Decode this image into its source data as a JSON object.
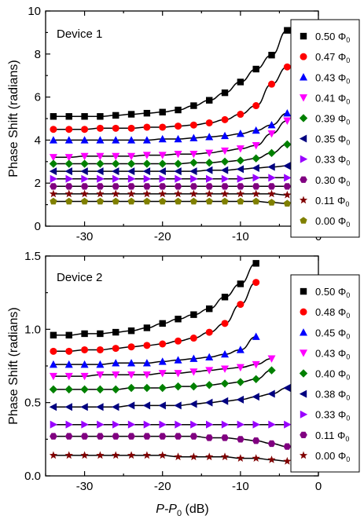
{
  "figure": {
    "shared_xlabel": "P-P0 (dB)"
  },
  "chart_data": [
    {
      "type": "scatter",
      "title": "Device 1",
      "ylabel": "Phase Shift (radians)",
      "xlabel": "P-P0 (dB)",
      "xlim": [
        -35,
        0
      ],
      "ylim": [
        0,
        10
      ],
      "xticks": [
        -30,
        -20,
        -10,
        0
      ],
      "yticks": [
        0,
        2,
        4,
        6,
        8,
        10
      ],
      "legend_position": "right",
      "grid": false,
      "x": [
        -34,
        -32,
        -30,
        -28,
        -26,
        -24,
        -22,
        -20,
        -18,
        -16,
        -14,
        -12,
        -10,
        -8,
        -6,
        -4
      ],
      "series": [
        {
          "name": "0.50 Φ0",
          "marker": "square",
          "color": "#000000",
          "values": [
            5.1,
            5.1,
            5.1,
            5.1,
            5.15,
            5.2,
            5.25,
            5.3,
            5.4,
            5.6,
            5.85,
            6.2,
            6.7,
            7.3,
            7.95,
            9.1
          ]
        },
        {
          "name": "0.47 Φ0",
          "marker": "circle",
          "color": "#ff0000",
          "values": [
            4.5,
            4.5,
            4.5,
            4.55,
            4.55,
            4.55,
            4.6,
            4.6,
            4.65,
            4.7,
            4.8,
            4.95,
            5.2,
            5.6,
            6.6,
            7.4
          ]
        },
        {
          "name": "0.43 Φ0",
          "marker": "triangle-up",
          "color": "#0000ff",
          "values": [
            4.0,
            4.0,
            4.0,
            4.0,
            4.0,
            4.0,
            4.0,
            4.05,
            4.05,
            4.1,
            4.15,
            4.2,
            4.3,
            4.45,
            4.7,
            5.25
          ]
        },
        {
          "name": "0.41 Φ0",
          "marker": "triangle-down",
          "color": "#ff00ff",
          "values": [
            3.2,
            3.2,
            3.25,
            3.25,
            3.25,
            3.25,
            3.3,
            3.3,
            3.35,
            3.35,
            3.4,
            3.5,
            3.6,
            3.75,
            4.3,
            4.9
          ]
        },
        {
          "name": "0.39 Φ0",
          "marker": "diamond",
          "color": "#008000",
          "values": [
            2.9,
            2.9,
            2.9,
            2.9,
            2.9,
            2.9,
            2.9,
            2.9,
            2.9,
            2.95,
            2.95,
            3.0,
            3.05,
            3.15,
            3.4,
            3.8
          ]
        },
        {
          "name": "0.35 Φ0",
          "marker": "triangle-left",
          "color": "#000080",
          "values": [
            2.55,
            2.55,
            2.55,
            2.55,
            2.55,
            2.55,
            2.55,
            2.55,
            2.55,
            2.55,
            2.6,
            2.6,
            2.65,
            2.7,
            2.75,
            2.8
          ]
        },
        {
          "name": "0.33 Φ0",
          "marker": "triangle-right",
          "color": "#9900ff",
          "values": [
            2.2,
            2.2,
            2.2,
            2.2,
            2.2,
            2.2,
            2.2,
            2.2,
            2.2,
            2.2,
            2.2,
            2.2,
            2.2,
            2.25,
            2.25,
            2.25
          ]
        },
        {
          "name": "0.30 Φ0",
          "marker": "hexagon",
          "color": "#800080",
          "values": [
            1.85,
            1.85,
            1.85,
            1.85,
            1.85,
            1.85,
            1.85,
            1.85,
            1.85,
            1.85,
            1.85,
            1.85,
            1.85,
            1.85,
            1.85,
            1.85
          ]
        },
        {
          "name": "0.11 Φ0",
          "marker": "star",
          "color": "#800000",
          "values": [
            1.5,
            1.5,
            1.5,
            1.5,
            1.5,
            1.5,
            1.5,
            1.5,
            1.5,
            1.5,
            1.5,
            1.5,
            1.5,
            1.5,
            1.5,
            1.45
          ]
        },
        {
          "name": "0.00 Φ0",
          "marker": "pentagon",
          "color": "#808000",
          "values": [
            1.15,
            1.15,
            1.15,
            1.15,
            1.15,
            1.15,
            1.15,
            1.15,
            1.15,
            1.15,
            1.15,
            1.15,
            1.15,
            1.15,
            1.1,
            1.05
          ]
        }
      ]
    },
    {
      "type": "scatter",
      "title": "Device 2",
      "ylabel": "Phase Shift (radians)",
      "xlabel": "P-P0 (dB)",
      "xlim": [
        -35,
        0
      ],
      "ylim": [
        0,
        1.5
      ],
      "xticks": [
        -30,
        -20,
        -10,
        0
      ],
      "yticks": [
        0.0,
        0.5,
        1.0,
        1.5
      ],
      "legend_position": "right",
      "grid": false,
      "x": [
        -34,
        -32,
        -30,
        -28,
        -26,
        -24,
        -22,
        -20,
        -18,
        -16,
        -14,
        -12,
        -10,
        -8,
        -6,
        -4
      ],
      "series": [
        {
          "name": "0.50 Φ0",
          "marker": "square",
          "color": "#000000",
          "values": [
            0.96,
            0.96,
            0.97,
            0.97,
            0.98,
            0.99,
            1.01,
            1.04,
            1.07,
            1.1,
            1.14,
            1.22,
            1.31,
            1.45,
            null,
            null
          ]
        },
        {
          "name": "0.48 Φ0",
          "marker": "circle",
          "color": "#ff0000",
          "values": [
            0.85,
            0.85,
            0.86,
            0.86,
            0.87,
            0.88,
            0.89,
            0.9,
            0.92,
            0.94,
            0.98,
            1.04,
            1.17,
            1.32,
            null,
            null
          ]
        },
        {
          "name": "0.45 Φ0",
          "marker": "triangle-up",
          "color": "#0000ff",
          "values": [
            0.76,
            0.76,
            0.76,
            0.76,
            0.77,
            0.77,
            0.77,
            0.78,
            0.79,
            0.8,
            0.81,
            0.83,
            0.86,
            0.95,
            null,
            null
          ]
        },
        {
          "name": "0.43 Φ0",
          "marker": "triangle-down",
          "color": "#ff00ff",
          "values": [
            0.68,
            0.68,
            0.68,
            0.69,
            0.69,
            0.69,
            0.69,
            0.7,
            0.7,
            0.71,
            0.72,
            0.73,
            0.74,
            0.76,
            0.8,
            null
          ]
        },
        {
          "name": "0.40 Φ0",
          "marker": "diamond",
          "color": "#008000",
          "values": [
            0.59,
            0.59,
            0.59,
            0.59,
            0.59,
            0.6,
            0.6,
            0.6,
            0.61,
            0.61,
            0.62,
            0.63,
            0.64,
            0.66,
            0.72,
            null
          ]
        },
        {
          "name": "0.38 Φ0",
          "marker": "triangle-left",
          "color": "#000080",
          "values": [
            0.47,
            0.47,
            0.47,
            0.47,
            0.47,
            0.48,
            0.48,
            0.48,
            0.48,
            0.49,
            0.5,
            0.51,
            0.52,
            0.54,
            0.56,
            0.6
          ]
        },
        {
          "name": "0.33 Φ0",
          "marker": "triangle-right",
          "color": "#9900ff",
          "values": [
            0.35,
            0.35,
            0.35,
            0.35,
            0.35,
            0.35,
            0.35,
            0.35,
            0.35,
            0.35,
            0.35,
            0.35,
            0.35,
            0.35,
            0.35,
            0.35
          ]
        },
        {
          "name": "0.11 Φ0",
          "marker": "hexagon",
          "color": "#800080",
          "values": [
            0.27,
            0.27,
            0.27,
            0.27,
            0.27,
            0.27,
            0.27,
            0.27,
            0.27,
            0.27,
            0.26,
            0.26,
            0.25,
            0.24,
            0.22,
            0.2
          ]
        },
        {
          "name": "0.00 Φ0",
          "marker": "star",
          "color": "#800000",
          "values": [
            0.14,
            0.14,
            0.14,
            0.14,
            0.14,
            0.14,
            0.14,
            0.14,
            0.13,
            0.13,
            0.13,
            0.13,
            0.12,
            0.12,
            0.11,
            0.1
          ]
        }
      ]
    }
  ]
}
